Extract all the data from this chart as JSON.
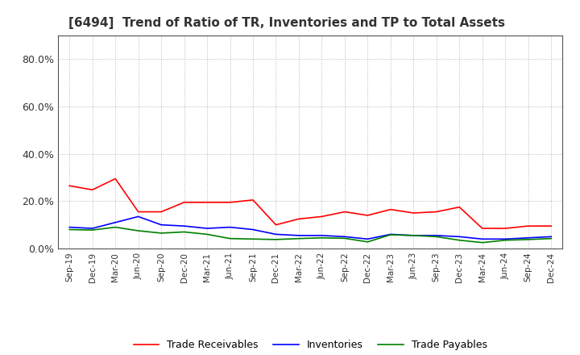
{
  "title": "[6494]  Trend of Ratio of TR, Inventories and TP to Total Assets",
  "title_fontsize": 11,
  "title_color": "#333333",
  "x_labels": [
    "Sep-19",
    "Dec-19",
    "Mar-20",
    "Jun-20",
    "Sep-20",
    "Dec-20",
    "Mar-21",
    "Jun-21",
    "Sep-21",
    "Dec-21",
    "Mar-22",
    "Jun-22",
    "Sep-22",
    "Dec-22",
    "Mar-23",
    "Jun-23",
    "Sep-23",
    "Dec-23",
    "Mar-24",
    "Jun-24",
    "Sep-24",
    "Dec-24"
  ],
  "trade_receivables": [
    0.265,
    0.248,
    0.295,
    0.155,
    0.155,
    0.195,
    0.195,
    0.195,
    0.205,
    0.1,
    0.125,
    0.135,
    0.155,
    0.14,
    0.165,
    0.15,
    0.155,
    0.175,
    0.085,
    0.085,
    0.095,
    0.095
  ],
  "inventories": [
    0.09,
    0.085,
    0.11,
    0.135,
    0.1,
    0.095,
    0.085,
    0.09,
    0.08,
    0.06,
    0.055,
    0.055,
    0.05,
    0.04,
    0.06,
    0.055,
    0.055,
    0.05,
    0.04,
    0.04,
    0.045,
    0.05
  ],
  "trade_payables": [
    0.08,
    0.078,
    0.09,
    0.075,
    0.065,
    0.07,
    0.06,
    0.042,
    0.04,
    0.038,
    0.042,
    0.045,
    0.043,
    0.028,
    0.058,
    0.055,
    0.05,
    0.035,
    0.025,
    0.035,
    0.038,
    0.042
  ],
  "ylim": [
    0.0,
    0.9
  ],
  "yticks": [
    0.0,
    0.2,
    0.4,
    0.6,
    0.8
  ],
  "tr_color": "#ff0000",
  "inv_color": "#0000ff",
  "tp_color": "#008000",
  "legend_labels": [
    "Trade Receivables",
    "Inventories",
    "Trade Payables"
  ],
  "background_color": "#ffffff",
  "grid_color": "#aaaaaa",
  "line_width": 1.2
}
